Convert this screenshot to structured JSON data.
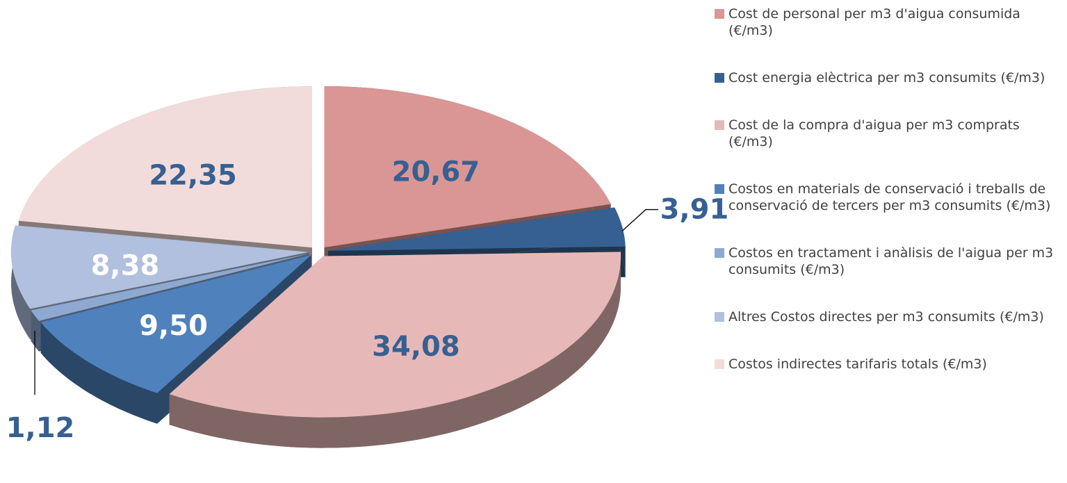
{
  "chart_data": {
    "type": "pie",
    "series": [
      {
        "names": [
          "Cost de personal per m3 d'aigua consumida (€/m3)",
          "Cost energia elèctrica per m3 consumits (€/m3)",
          "Cost de la compra d'aigua per m3 comprats (€/m3)",
          "Costos en materials de conservació i treballs de conservació de tercers per m3 consumits (€/m3)",
          "Costos en tractament i anàlisis de l'aigua per m3 consumits (€/m3)",
          "Altres Costos directes per m3 consumits (€/m3)",
          "Costos indirectes tarifaris totals (€/m3)"
        ],
        "colors": [
          "#d99694",
          "#376092",
          "#e6b9b8",
          "#4f81bd",
          "#8ea9d1",
          "#b0c0de",
          "#f2dcdb"
        ],
        "values": [
          20.67,
          3.91,
          34.08,
          9.5,
          1.12,
          8.38,
          22.35
        ],
        "value_labels": [
          "20,67",
          "3,91",
          "34,08",
          "9,50",
          "1,12",
          "8,38",
          "22,35"
        ]
      }
    ],
    "legend": "right"
  }
}
